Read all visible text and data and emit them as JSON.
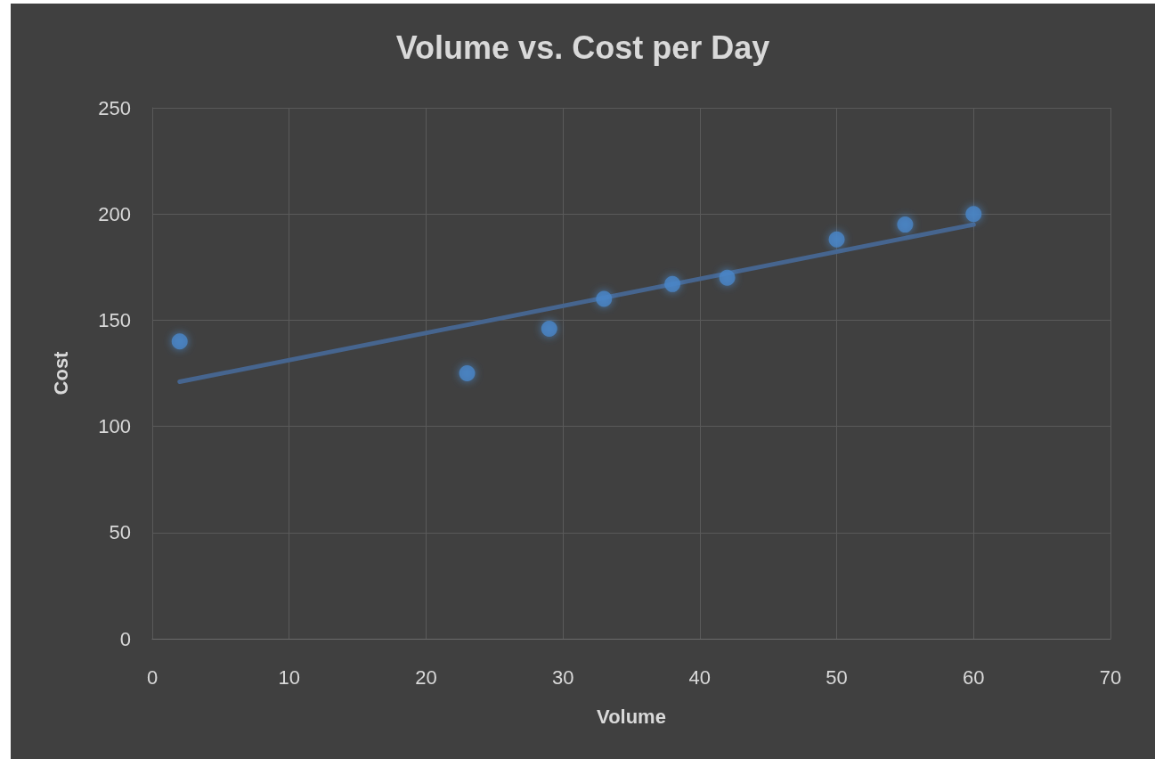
{
  "chart_data": {
    "type": "scatter",
    "title": "Volume vs. Cost per Day",
    "xlabel": "Volume",
    "ylabel": "Cost",
    "series": [
      {
        "color": "#4a86c8",
        "x": [
          2,
          23,
          29,
          33,
          38,
          42,
          50,
          55,
          60
        ],
        "values": [
          140,
          125,
          146,
          160,
          167,
          170,
          188,
          195,
          200
        ]
      },
      {
        "type": "line",
        "color": "#46658f",
        "x": [
          2,
          60
        ],
        "values": [
          121,
          195
        ],
        "marker": "none",
        "line_style": "solid"
      }
    ],
    "xlim": [
      0,
      70
    ],
    "xticks": [
      0,
      10,
      20,
      30,
      40,
      50,
      60,
      70
    ],
    "ylim": [
      0,
      250
    ],
    "yticks": [
      0,
      50,
      100,
      150,
      200,
      250
    ],
    "grid": true,
    "marker": "circle"
  }
}
